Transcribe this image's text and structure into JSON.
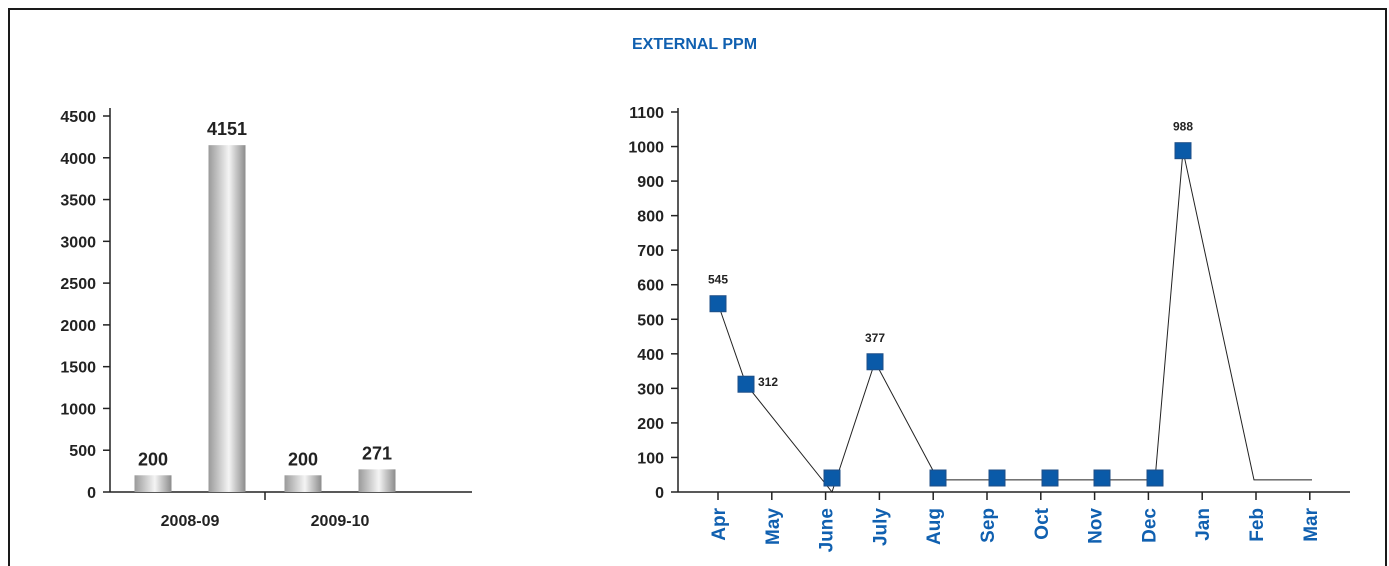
{
  "title": "EXTERNAL PPM",
  "chart_data": [
    {
      "type": "bar",
      "categories": [
        "2008-09",
        "2009-10"
      ],
      "series": [
        {
          "values": [
            200,
            200
          ]
        },
        {
          "values": [
            4151,
            271
          ]
        }
      ],
      "ylim": [
        0,
        4500
      ],
      "yticks": [
        0,
        500,
        1000,
        1500,
        2000,
        2500,
        3000,
        3500,
        4000,
        4500
      ],
      "bar_color": "#c8c8c8"
    },
    {
      "type": "line",
      "categories": [
        "Apr",
        "May",
        "June",
        "July",
        "Aug",
        "Sep",
        "Oct",
        "Nov",
        "Dec",
        "Jan",
        "Feb",
        "Mar"
      ],
      "marker_series": {
        "x": [
          "Apr",
          "May",
          "June",
          "July",
          "Aug",
          "Sep",
          "Oct",
          "Nov",
          "Dec",
          "Jan"
        ],
        "values": [
          545,
          312,
          0,
          377,
          0,
          0,
          0,
          0,
          0,
          988
        ],
        "labels": [
          "545",
          "312",
          "",
          "377",
          "",
          "",
          "",
          "",
          "",
          "988"
        ]
      },
      "target_line": {
        "values": [
          545,
          312,
          0,
          377,
          35,
          35,
          35,
          35,
          35,
          988,
          35,
          35
        ]
      },
      "ylim": [
        0,
        1100
      ],
      "yticks": [
        0,
        100,
        200,
        300,
        400,
        500,
        600,
        700,
        800,
        900,
        1000,
        1100
      ],
      "marker_color": "#0a5aa8",
      "label_color": "#1060b0"
    }
  ]
}
